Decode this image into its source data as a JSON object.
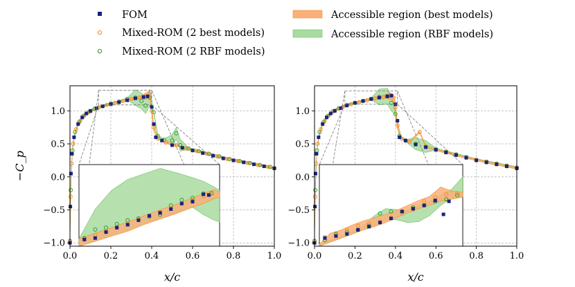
{
  "legend": {
    "entries": [
      {
        "label": "FOM",
        "marker": "square",
        "color": "#1a237e"
      },
      {
        "label": "Mixed-ROM (2 best models)",
        "marker": "circle",
        "color": "#f28e2b"
      },
      {
        "label": "Mixed-ROM (2 RBF models)",
        "marker": "circle",
        "color": "#2ca02c"
      },
      {
        "label": "Accessible region (best models)",
        "marker": "band",
        "color": "#f9b07a"
      },
      {
        "label": "Accessible region (RBF models)",
        "marker": "band",
        "color": "#a9dba0"
      }
    ]
  },
  "chart_data": [
    {
      "type": "scatter",
      "panel": "left",
      "xlabel": "x/c",
      "ylabel": "−C_p",
      "xlim": [
        0.0,
        1.0
      ],
      "ylim": [
        -1.05,
        1.38
      ],
      "x_ticks": [
        "0.0",
        "0.2",
        "0.4",
        "0.6",
        "0.8",
        "1.0"
      ],
      "y_ticks": [
        "−1.0",
        "−0.5",
        "0.0",
        "0.5",
        "1.0"
      ],
      "grid": true,
      "shock_x": 0.39,
      "fom": [
        [
          0.0,
          -1.0
        ],
        [
          0.002,
          -0.45
        ],
        [
          0.005,
          0.05
        ],
        [
          0.01,
          0.35
        ],
        [
          0.02,
          0.6
        ],
        [
          0.04,
          0.8
        ],
        [
          0.06,
          0.9
        ],
        [
          0.08,
          0.96
        ],
        [
          0.1,
          1.0
        ],
        [
          0.13,
          1.04
        ],
        [
          0.16,
          1.07
        ],
        [
          0.2,
          1.1
        ],
        [
          0.24,
          1.13
        ],
        [
          0.28,
          1.16
        ],
        [
          0.32,
          1.19
        ],
        [
          0.36,
          1.21
        ],
        [
          0.38,
          1.22
        ],
        [
          0.4,
          1.06
        ],
        [
          0.41,
          0.8
        ],
        [
          0.42,
          0.6
        ],
        [
          0.45,
          0.55
        ],
        [
          0.5,
          0.48
        ],
        [
          0.55,
          0.44
        ],
        [
          0.6,
          0.4
        ],
        [
          0.65,
          0.36
        ],
        [
          0.7,
          0.32
        ],
        [
          0.75,
          0.28
        ],
        [
          0.8,
          0.25
        ],
        [
          0.85,
          0.22
        ],
        [
          0.9,
          0.19
        ],
        [
          0.95,
          0.16
        ],
        [
          1.0,
          0.13
        ]
      ],
      "rom_best": [
        [
          0.0,
          -0.98
        ],
        [
          0.003,
          -0.3
        ],
        [
          0.008,
          0.2
        ],
        [
          0.015,
          0.5
        ],
        [
          0.03,
          0.72
        ],
        [
          0.05,
          0.85
        ],
        [
          0.07,
          0.93
        ],
        [
          0.1,
          0.99
        ],
        [
          0.14,
          1.05
        ],
        [
          0.18,
          1.09
        ],
        [
          0.22,
          1.12
        ],
        [
          0.26,
          1.15
        ],
        [
          0.3,
          1.18
        ],
        [
          0.34,
          1.2
        ],
        [
          0.37,
          1.22
        ],
        [
          0.39,
          1.25
        ],
        [
          0.4,
          1.0
        ],
        [
          0.41,
          0.75
        ],
        [
          0.43,
          0.58
        ],
        [
          0.47,
          0.52
        ],
        [
          0.52,
          0.48
        ],
        [
          0.57,
          0.43
        ],
        [
          0.62,
          0.39
        ],
        [
          0.67,
          0.35
        ],
        [
          0.72,
          0.31
        ],
        [
          0.77,
          0.27
        ],
        [
          0.82,
          0.24
        ],
        [
          0.87,
          0.21
        ],
        [
          0.92,
          0.18
        ],
        [
          0.97,
          0.15
        ],
        [
          1.0,
          0.13
        ]
      ],
      "rom_rbf": [
        [
          0.0,
          -0.97
        ],
        [
          0.004,
          -0.2
        ],
        [
          0.012,
          0.4
        ],
        [
          0.025,
          0.68
        ],
        [
          0.045,
          0.83
        ],
        [
          0.065,
          0.92
        ],
        [
          0.09,
          0.98
        ],
        [
          0.12,
          1.03
        ],
        [
          0.16,
          1.07
        ],
        [
          0.2,
          1.11
        ],
        [
          0.24,
          1.14
        ],
        [
          0.28,
          1.18
        ],
        [
          0.32,
          1.2
        ],
        [
          0.35,
          1.15
        ],
        [
          0.37,
          1.08
        ],
        [
          0.39,
          1.2
        ],
        [
          0.41,
          0.98
        ],
        [
          0.43,
          0.62
        ],
        [
          0.46,
          0.56
        ],
        [
          0.5,
          0.55
        ],
        [
          0.52,
          0.66
        ],
        [
          0.54,
          0.48
        ],
        [
          0.58,
          0.43
        ],
        [
          0.63,
          0.39
        ],
        [
          0.68,
          0.35
        ],
        [
          0.73,
          0.31
        ],
        [
          0.78,
          0.27
        ],
        [
          0.83,
          0.24
        ],
        [
          0.88,
          0.21
        ],
        [
          0.93,
          0.18
        ],
        [
          0.98,
          0.15
        ]
      ],
      "inset": {
        "xlim": [
          0.14,
          0.4
        ],
        "ylim": [
          1.09,
          1.31
        ],
        "fom": [
          [
            0.15,
            1.108
          ],
          [
            0.17,
            1.112
          ],
          [
            0.19,
            1.128
          ],
          [
            0.21,
            1.14
          ],
          [
            0.23,
            1.148
          ],
          [
            0.25,
            1.16
          ],
          [
            0.27,
            1.172
          ],
          [
            0.29,
            1.18
          ],
          [
            0.31,
            1.19
          ],
          [
            0.33,
            1.205
          ],
          [
            0.35,
            1.21
          ],
          [
            0.37,
            1.23
          ],
          [
            0.38,
            1.228
          ]
        ],
        "rom_best": [
          [
            0.15,
            1.11
          ],
          [
            0.17,
            1.12
          ],
          [
            0.19,
            1.13
          ],
          [
            0.21,
            1.14
          ],
          [
            0.23,
            1.15
          ],
          [
            0.25,
            1.163
          ],
          [
            0.27,
            1.172
          ],
          [
            0.29,
            1.182
          ],
          [
            0.31,
            1.192
          ],
          [
            0.33,
            1.205
          ],
          [
            0.35,
            1.213
          ],
          [
            0.37,
            1.225
          ],
          [
            0.385,
            1.235
          ]
        ],
        "rom_rbf": [
          [
            0.15,
            1.112
          ],
          [
            0.17,
            1.135
          ],
          [
            0.19,
            1.14
          ],
          [
            0.21,
            1.15
          ],
          [
            0.23,
            1.16
          ],
          [
            0.25,
            1.165
          ],
          [
            0.27,
            1.17
          ],
          [
            0.29,
            1.175
          ],
          [
            0.31,
            1.2
          ],
          [
            0.33,
            1.215
          ],
          [
            0.35,
            1.22
          ],
          [
            0.37,
            1.232
          ],
          [
            0.385,
            1.232
          ]
        ],
        "band_best": {
          "x": [
            0.14,
            0.17,
            0.2,
            0.23,
            0.26,
            0.29,
            0.32,
            0.35,
            0.37,
            0.39,
            0.4
          ],
          "lo": [
            1.09,
            1.103,
            1.117,
            1.13,
            1.148,
            1.163,
            1.178,
            1.195,
            1.205,
            1.218,
            1.222
          ],
          "hi": [
            1.11,
            1.125,
            1.14,
            1.155,
            1.172,
            1.188,
            1.203,
            1.22,
            1.232,
            1.242,
            1.235
          ]
        },
        "band_rbf": {
          "x": [
            0.14,
            0.17,
            0.2,
            0.23,
            0.26,
            0.29,
            0.32,
            0.35,
            0.37,
            0.39,
            0.4
          ],
          "lo": [
            1.09,
            1.103,
            1.118,
            1.132,
            1.15,
            1.165,
            1.18,
            1.195,
            1.175,
            1.16,
            1.155
          ],
          "hi": [
            1.11,
            1.19,
            1.24,
            1.27,
            1.285,
            1.3,
            1.288,
            1.275,
            1.265,
            1.25,
            1.24
          ]
        }
      }
    },
    {
      "type": "scatter",
      "panel": "right",
      "xlabel": "x/c",
      "ylabel": "",
      "xlim": [
        0.0,
        1.0
      ],
      "ylim": [
        -1.05,
        1.38
      ],
      "x_ticks": [
        "0.0",
        "0.2",
        "0.4",
        "0.6",
        "0.8",
        "1.0"
      ],
      "y_ticks": [
        "−1.0",
        "−0.5",
        "0.0",
        "0.5",
        "1.0"
      ],
      "grid": true,
      "shock_x": 0.41,
      "fom": [
        [
          0.0,
          -1.0
        ],
        [
          0.002,
          -0.45
        ],
        [
          0.005,
          0.05
        ],
        [
          0.01,
          0.35
        ],
        [
          0.02,
          0.6
        ],
        [
          0.04,
          0.8
        ],
        [
          0.06,
          0.9
        ],
        [
          0.08,
          0.96
        ],
        [
          0.1,
          1.0
        ],
        [
          0.13,
          1.04
        ],
        [
          0.16,
          1.08
        ],
        [
          0.2,
          1.12
        ],
        [
          0.24,
          1.15
        ],
        [
          0.28,
          1.18
        ],
        [
          0.32,
          1.2
        ],
        [
          0.36,
          1.22
        ],
        [
          0.38,
          1.23
        ],
        [
          0.4,
          1.1
        ],
        [
          0.41,
          0.85
        ],
        [
          0.42,
          0.6
        ],
        [
          0.45,
          0.55
        ],
        [
          0.5,
          0.49
        ],
        [
          0.55,
          0.45
        ],
        [
          0.6,
          0.41
        ],
        [
          0.65,
          0.37
        ],
        [
          0.7,
          0.33
        ],
        [
          0.75,
          0.29
        ],
        [
          0.8,
          0.25
        ],
        [
          0.85,
          0.22
        ],
        [
          0.9,
          0.19
        ],
        [
          0.95,
          0.16
        ],
        [
          1.0,
          0.13
        ]
      ],
      "rom_best": [
        [
          0.0,
          -0.98
        ],
        [
          0.003,
          -0.3
        ],
        [
          0.008,
          0.2
        ],
        [
          0.015,
          0.5
        ],
        [
          0.03,
          0.72
        ],
        [
          0.05,
          0.85
        ],
        [
          0.07,
          0.93
        ],
        [
          0.1,
          1.0
        ],
        [
          0.14,
          1.06
        ],
        [
          0.18,
          1.1
        ],
        [
          0.22,
          1.13
        ],
        [
          0.26,
          1.16
        ],
        [
          0.3,
          1.19
        ],
        [
          0.34,
          1.21
        ],
        [
          0.37,
          1.23
        ],
        [
          0.39,
          1.2
        ],
        [
          0.4,
          1.05
        ],
        [
          0.41,
          0.78
        ],
        [
          0.43,
          0.58
        ],
        [
          0.47,
          0.53
        ],
        [
          0.52,
          0.68
        ],
        [
          0.55,
          0.46
        ],
        [
          0.6,
          0.41
        ],
        [
          0.65,
          0.37
        ],
        [
          0.7,
          0.33
        ],
        [
          0.75,
          0.29
        ],
        [
          0.8,
          0.26
        ],
        [
          0.85,
          0.22
        ],
        [
          0.9,
          0.19
        ],
        [
          0.95,
          0.16
        ],
        [
          1.0,
          0.13
        ]
      ],
      "rom_rbf": [
        [
          0.0,
          -0.97
        ],
        [
          0.004,
          -0.2
        ],
        [
          0.012,
          0.4
        ],
        [
          0.025,
          0.68
        ],
        [
          0.045,
          0.83
        ],
        [
          0.065,
          0.92
        ],
        [
          0.09,
          0.99
        ],
        [
          0.12,
          1.04
        ],
        [
          0.16,
          1.09
        ],
        [
          0.2,
          1.12
        ],
        [
          0.24,
          1.15
        ],
        [
          0.28,
          1.18
        ],
        [
          0.32,
          1.21
        ],
        [
          0.36,
          1.22
        ],
        [
          0.38,
          1.12
        ],
        [
          0.4,
          0.95
        ],
        [
          0.42,
          0.62
        ],
        [
          0.45,
          0.55
        ],
        [
          0.5,
          0.5
        ],
        [
          0.55,
          0.46
        ],
        [
          0.6,
          0.42
        ],
        [
          0.65,
          0.38
        ],
        [
          0.7,
          0.34
        ],
        [
          0.75,
          0.3
        ],
        [
          0.8,
          0.26
        ],
        [
          0.85,
          0.23
        ],
        [
          0.9,
          0.2
        ],
        [
          0.95,
          0.17
        ],
        [
          1.0,
          0.14
        ]
      ],
      "inset": {
        "xlim": [
          0.15,
          0.41
        ],
        "ylim": [
          1.1,
          1.3
        ],
        "fom": [
          [
            0.16,
            1.12
          ],
          [
            0.18,
            1.125
          ],
          [
            0.2,
            1.13
          ],
          [
            0.22,
            1.14
          ],
          [
            0.24,
            1.148
          ],
          [
            0.26,
            1.158
          ],
          [
            0.28,
            1.168
          ],
          [
            0.3,
            1.185
          ],
          [
            0.32,
            1.192
          ],
          [
            0.34,
            1.2
          ],
          [
            0.36,
            1.212
          ],
          [
            0.375,
            1.178
          ],
          [
            0.385,
            1.21
          ]
        ],
        "rom_best": [
          [
            0.16,
            1.122
          ],
          [
            0.18,
            1.128
          ],
          [
            0.2,
            1.14
          ],
          [
            0.22,
            1.15
          ],
          [
            0.24,
            1.155
          ],
          [
            0.26,
            1.16
          ],
          [
            0.28,
            1.17
          ],
          [
            0.3,
            1.18
          ],
          [
            0.32,
            1.19
          ],
          [
            0.34,
            1.21
          ],
          [
            0.36,
            1.22
          ],
          [
            0.38,
            1.228
          ],
          [
            0.4,
            1.23
          ]
        ],
        "rom_rbf": [
          [
            0.16,
            1.115
          ],
          [
            0.18,
            1.13
          ],
          [
            0.2,
            1.135
          ],
          [
            0.22,
            1.14
          ],
          [
            0.24,
            1.15
          ],
          [
            0.26,
            1.18
          ],
          [
            0.28,
            1.185
          ],
          [
            0.3,
            1.185
          ],
          [
            0.32,
            1.195
          ],
          [
            0.34,
            1.2
          ],
          [
            0.36,
            1.21
          ],
          [
            0.38,
            1.215
          ],
          [
            0.4,
            1.225
          ]
        ],
        "band_best": {
          "x": [
            0.15,
            0.17,
            0.19,
            0.21,
            0.23,
            0.25,
            0.27,
            0.29,
            0.31,
            0.33,
            0.35,
            0.37,
            0.39,
            0.41
          ],
          "lo": [
            1.1,
            1.11,
            1.12,
            1.13,
            1.14,
            1.148,
            1.158,
            1.17,
            1.182,
            1.192,
            1.2,
            1.21,
            1.215,
            1.22
          ],
          "hi": [
            1.105,
            1.132,
            1.14,
            1.152,
            1.162,
            1.17,
            1.178,
            1.188,
            1.2,
            1.212,
            1.222,
            1.245,
            1.235,
            1.232
          ]
        },
        "band_rbf": {
          "x": [
            0.15,
            0.17,
            0.19,
            0.21,
            0.23,
            0.25,
            0.27,
            0.29,
            0.31,
            0.33,
            0.35,
            0.37,
            0.39,
            0.41
          ],
          "lo": [
            1.1,
            1.11,
            1.12,
            1.13,
            1.14,
            1.15,
            1.165,
            1.165,
            1.158,
            1.16,
            1.175,
            1.2,
            1.218,
            1.222
          ],
          "hi": [
            1.104,
            1.115,
            1.125,
            1.135,
            1.15,
            1.175,
            1.192,
            1.19,
            1.188,
            1.2,
            1.21,
            1.225,
            1.24,
            1.27
          ]
        }
      }
    }
  ]
}
